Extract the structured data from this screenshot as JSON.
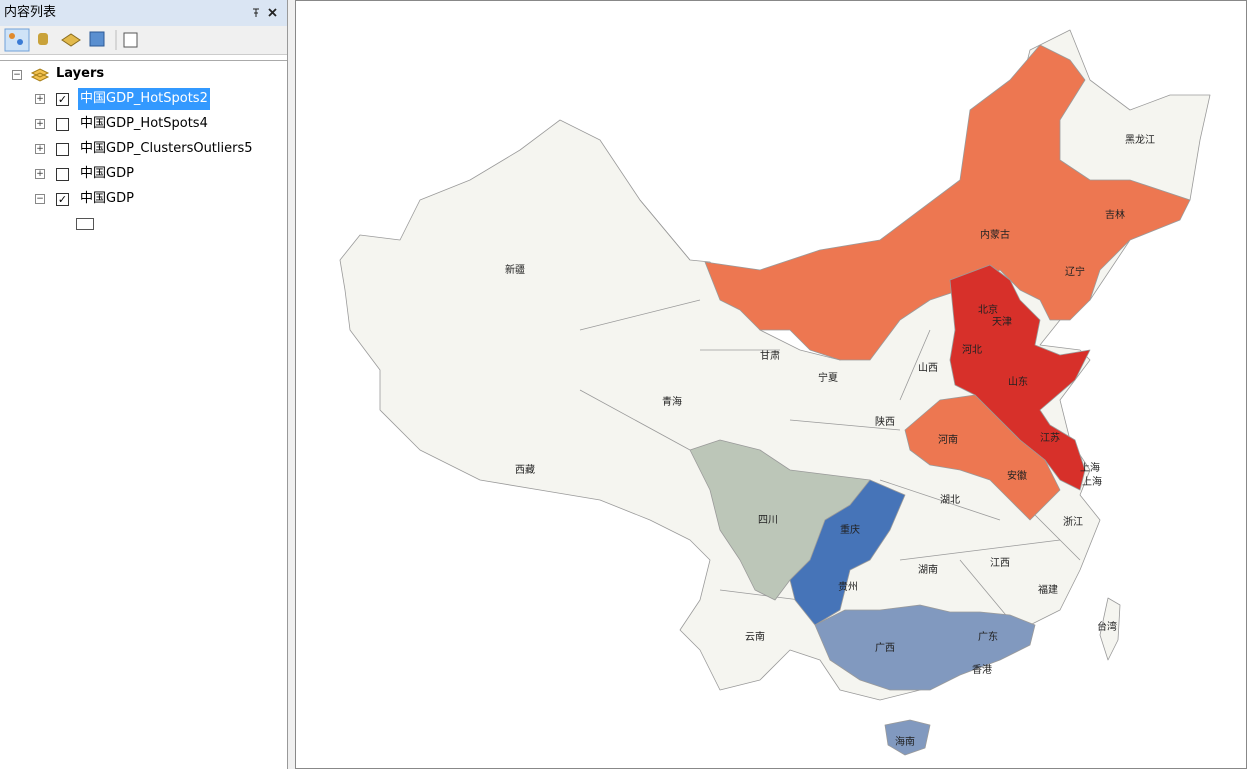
{
  "panel": {
    "title": "内容列表",
    "root": "Layers",
    "layers": [
      {
        "name": "中国GDP_HotSpots2",
        "checked": true,
        "selected": true,
        "expanded": false
      },
      {
        "name": "中国GDP_HotSpots4",
        "checked": false,
        "selected": false,
        "expanded": false
      },
      {
        "name": "中国GDP_ClustersOutliers5",
        "checked": false,
        "selected": false,
        "expanded": false
      },
      {
        "name": "中国GDP",
        "checked": false,
        "selected": false,
        "expanded": false
      },
      {
        "name": "中国GDP",
        "checked": true,
        "selected": false,
        "expanded": true
      }
    ]
  },
  "map": {
    "labels": [
      "黑龙江",
      "吉林",
      "辽宁",
      "内蒙古",
      "北京",
      "天津",
      "河北",
      "山西",
      "山东",
      "新疆",
      "甘肃",
      "宁夏",
      "青海",
      "西藏",
      "陕西",
      "河南",
      "江苏",
      "安徽",
      "上海",
      "上海",
      "湖北",
      "浙江",
      "四川",
      "重庆",
      "湖南",
      "江西",
      "贵州",
      "福建",
      "云南",
      "广西",
      "广东",
      "台湾",
      "香港",
      "海南"
    ]
  }
}
